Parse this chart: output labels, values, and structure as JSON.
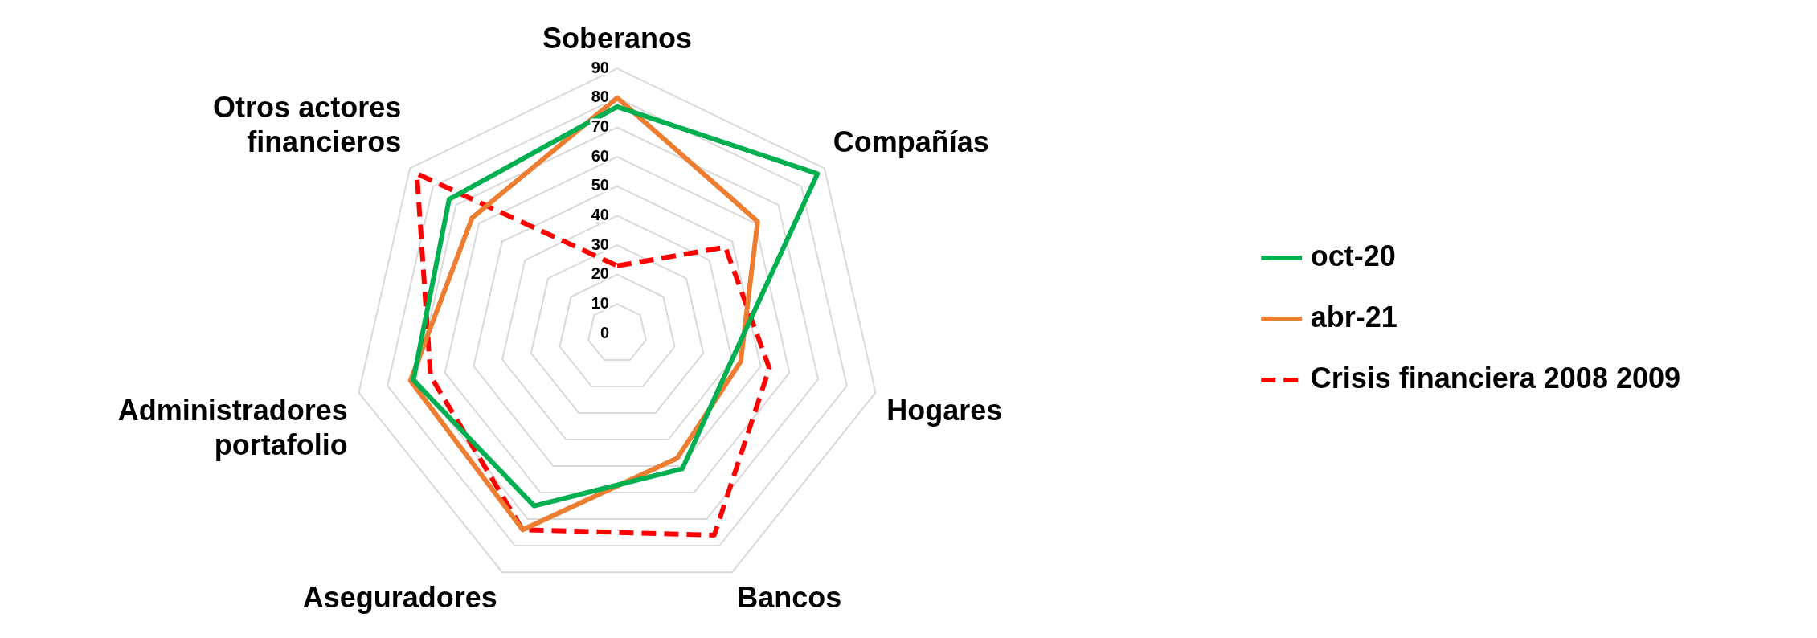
{
  "chart_data": {
    "type": "radar",
    "categories": [
      "Soberanos",
      "Compañías",
      "Hogares",
      "Bancos",
      "Aseguradores",
      "Administradores portafolio",
      "Otros actores financieros"
    ],
    "series": [
      {
        "name": "oct-20",
        "color": "#00b050",
        "values": [
          77,
          87,
          40,
          51,
          65,
          71,
          73
        ]
      },
      {
        "name": "abr-21",
        "color": "#ed7d31",
        "values": [
          80,
          61,
          43,
          47,
          74,
          72,
          63
        ]
      },
      {
        "name": "Crisis financiera 2008 2009",
        "color": "#ff0000",
        "line_style": "dashed",
        "values": [
          23,
          47,
          53,
          76,
          74,
          65,
          87
        ]
      }
    ],
    "ylim": [
      0,
      90
    ],
    "yticks": [
      0,
      10,
      20,
      30,
      40,
      50,
      60,
      70,
      80,
      90
    ],
    "grid": true,
    "legend": "right",
    "marker": "none"
  }
}
